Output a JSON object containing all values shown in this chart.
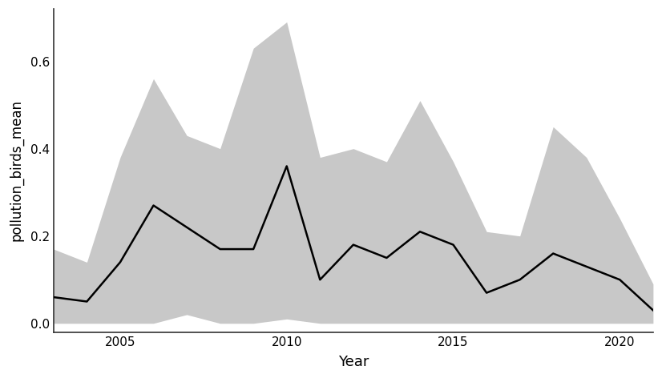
{
  "years": [
    2003,
    2004,
    2005,
    2006,
    2007,
    2008,
    2009,
    2010,
    2011,
    2012,
    2013,
    2014,
    2015,
    2016,
    2017,
    2018,
    2019,
    2020,
    2021
  ],
  "mean": [
    0.06,
    0.05,
    0.14,
    0.27,
    0.22,
    0.17,
    0.17,
    0.36,
    0.1,
    0.18,
    0.15,
    0.21,
    0.18,
    0.07,
    0.1,
    0.16,
    0.13,
    0.1,
    0.03
  ],
  "upper": [
    0.17,
    0.14,
    0.38,
    0.56,
    0.43,
    0.4,
    0.63,
    0.69,
    0.38,
    0.4,
    0.37,
    0.51,
    0.37,
    0.21,
    0.2,
    0.45,
    0.38,
    0.24,
    0.09
  ],
  "lower": [
    0.0,
    0.0,
    0.0,
    0.0,
    0.02,
    0.0,
    0.0,
    0.01,
    0.0,
    0.0,
    0.0,
    0.0,
    0.0,
    0.0,
    0.0,
    0.0,
    0.0,
    0.0,
    0.0
  ],
  "xlabel": "Year",
  "ylabel": "pollution_birds_mean",
  "xlim": [
    2003,
    2021
  ],
  "ylim": [
    -0.02,
    0.72
  ],
  "yticks": [
    0.0,
    0.2,
    0.4,
    0.6
  ],
  "xticks": [
    2005,
    2010,
    2015,
    2020
  ],
  "mean_color": "#000000",
  "shade_color": "#c8c8c8",
  "background_color": "#ffffff",
  "grid_color": "#ffffff",
  "line_width": 1.8,
  "ylabel_fontsize": 12,
  "xlabel_fontsize": 13,
  "tick_fontsize": 11
}
